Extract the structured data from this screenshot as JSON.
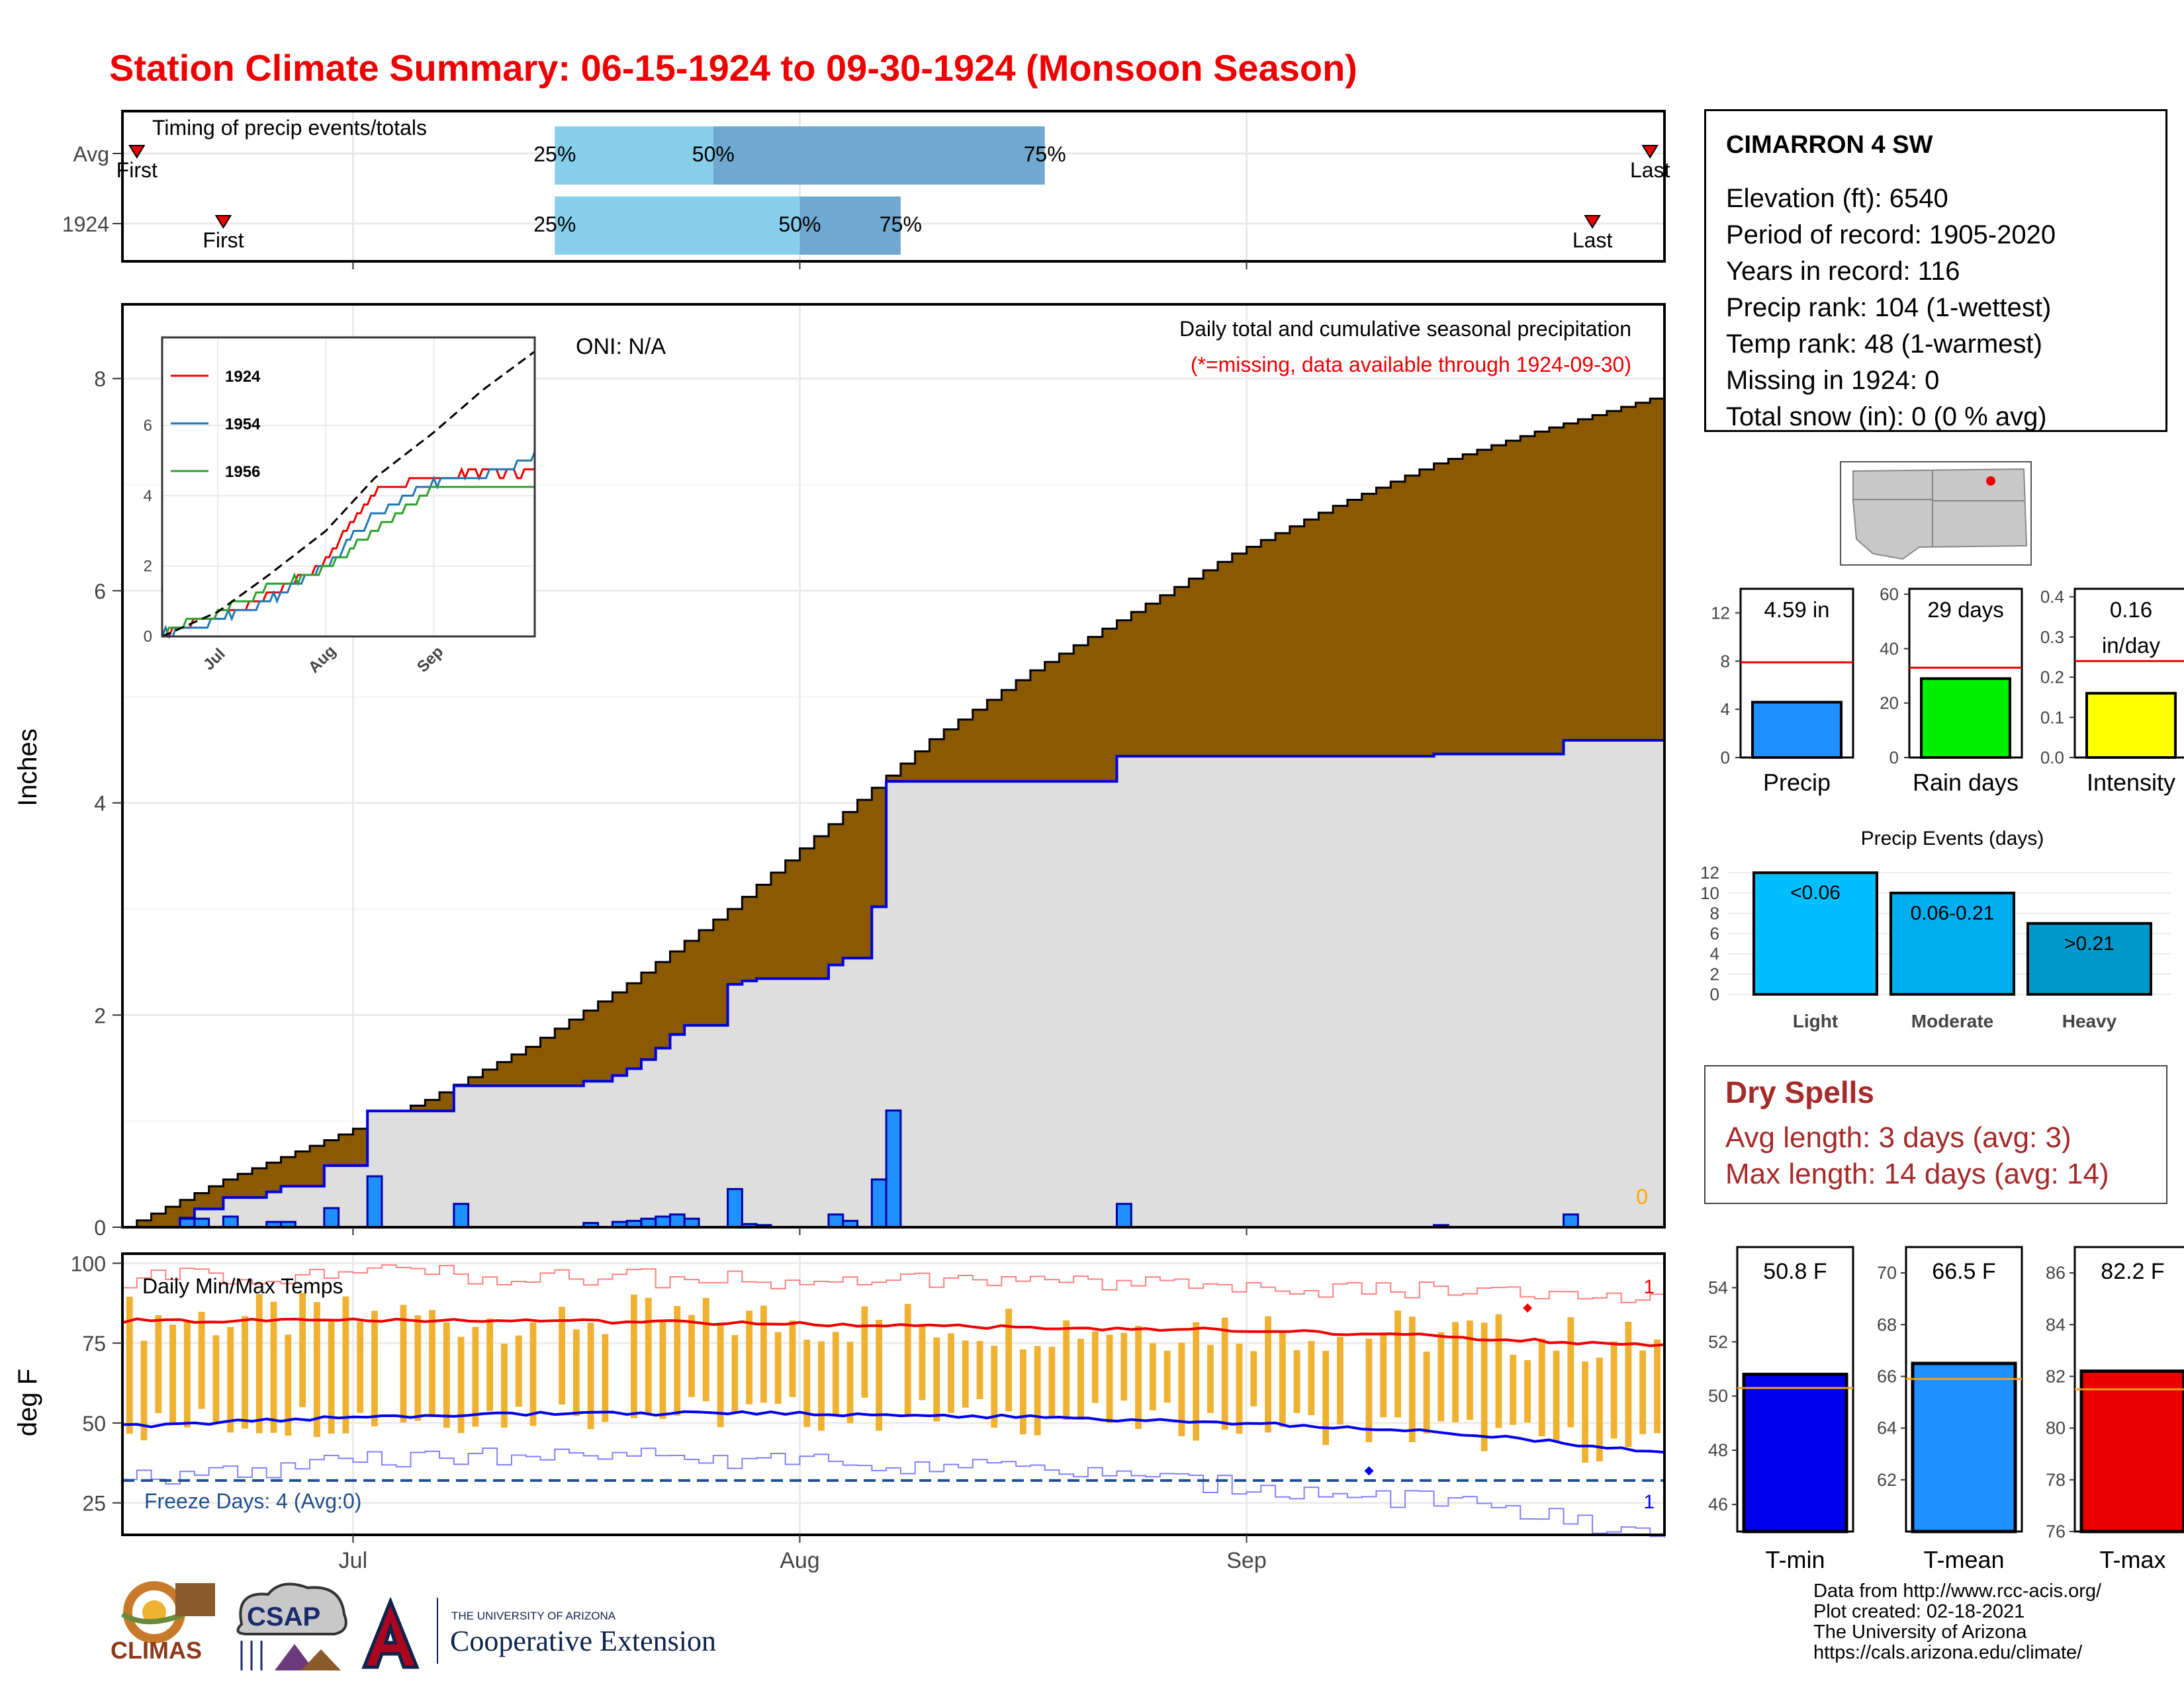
{
  "title": "Station Climate Summary: 06-15-1924 to 09-30-1924 (Monsoon Season)",
  "colors": {
    "title": "#ee0000",
    "cumulative_avg": "#8b5a00",
    "cumulative_year": "#dedede",
    "daily_bar": "#1e90ff",
    "temp_bar": "#f0b030",
    "tmax_line": "#ee0000",
    "tmin_line": "#0000ee",
    "q1_bar": "#87ceeb",
    "q2_bar": "#6fa8d0",
    "light": "#00bfff",
    "moderate": "#00aeef",
    "heavy": "#0099cc",
    "dry_text": "#a52a2a"
  },
  "timing_panel": {
    "title": "Timing of precip events/totals",
    "rows": [
      {
        "label": "Avg",
        "first_date": "1924-06-16",
        "q25_date": "1924-07-15",
        "q50_date": "1924-07-26",
        "q75_date": "1924-08-18",
        "last_date": "1924-09-29",
        "first_label": "First",
        "last_label": "Last",
        "p25": "25%",
        "p50": "50%",
        "p75": "75%"
      },
      {
        "label": "1924",
        "first_date": "1924-06-22",
        "q25_date": "1924-07-15",
        "q50_date": "1924-08-01",
        "q75_date": "1924-08-08",
        "last_date": "1924-09-25",
        "first_label": "First",
        "last_label": "Last",
        "p25": "25%",
        "p50": "50%",
        "p75": "75%"
      }
    ]
  },
  "precip_panel": {
    "ylabel": "Inches",
    "title": "Daily total and cumulative seasonal precipitation",
    "note": "(*=missing, data available through 1924-09-30)",
    "oni": "ONI: N/A",
    "corner_count": "0",
    "yticks": [
      "0",
      "2",
      "4",
      "6",
      "8"
    ]
  },
  "inset": {
    "yticks": [
      "0",
      "2",
      "4",
      "6"
    ],
    "xticks": [
      "Jul",
      "Aug",
      "Sep"
    ],
    "legend": [
      "1924",
      "1954",
      "1956"
    ]
  },
  "temp_panel": {
    "ylabel": "deg F",
    "title": "Daily Min/Max Temps",
    "freeze": "Freeze Days: 4 (Avg:0)",
    "count_top": "1",
    "count_bottom": "1",
    "yticks": [
      "25",
      "50",
      "75",
      "100"
    ]
  },
  "xaxis": {
    "ticks": [
      "Jul",
      "Aug",
      "Sep"
    ]
  },
  "station": {
    "name": "CIMARRON 4 SW",
    "lines": [
      "Elevation (ft): 6540",
      "Period of record: 1905-2020",
      "Years in record: 116",
      "Precip rank: 104 (1-wettest)",
      "Temp rank: 48 (1-warmest)",
      "Missing in 1924: 0",
      "Total snow (in): 0 (0 % avg)"
    ]
  },
  "mini_precip": {
    "label": "Precip",
    "value_text": "4.59 in",
    "value": 4.59,
    "avg": 7.9,
    "ylim": [
      0,
      14
    ],
    "yticks": [
      "0",
      "4",
      "8",
      "12"
    ]
  },
  "mini_raindays": {
    "label": "Rain days",
    "value_text": "29 days",
    "value": 29,
    "avg": 33,
    "ylim": [
      0,
      62
    ],
    "yticks": [
      "0",
      "20",
      "40",
      "60"
    ]
  },
  "mini_intensity": {
    "label": "Intensity",
    "value_text": "0.16",
    "value_text2": "in/day",
    "value": 0.16,
    "avg": 0.24,
    "ylim": [
      0,
      0.42
    ],
    "yticks": [
      "0.0",
      "0.1",
      "0.2",
      "0.3",
      "0.4"
    ]
  },
  "events": {
    "title": "Precip Events (days)",
    "yticks": [
      "0",
      "2",
      "4",
      "6",
      "8",
      "10",
      "12"
    ],
    "ylim": [
      0,
      12
    ],
    "bars": [
      {
        "name": "Light",
        "label": "<0.06",
        "value": 12
      },
      {
        "name": "Moderate",
        "label": "0.06-0.21",
        "value": 10
      },
      {
        "name": "Heavy",
        "label": ">0.21",
        "value": 7
      }
    ]
  },
  "dry_spells": {
    "title": "Dry Spells",
    "avg": "Avg length: 3 days (avg: 3)",
    "max": "Max length: 14 days (avg: 14)"
  },
  "tmin": {
    "label": "T-min",
    "value_text": "50.8 F",
    "value": 50.8,
    "avg": 50.3,
    "ylim": [
      45,
      55.5
    ],
    "yticks": [
      "46",
      "48",
      "50",
      "52",
      "54"
    ]
  },
  "tmean": {
    "label": "T-mean",
    "value_text": "66.5 F",
    "value": 66.5,
    "avg": 65.9,
    "ylim": [
      60,
      71
    ],
    "yticks": [
      "62",
      "64",
      "66",
      "68",
      "70"
    ]
  },
  "tmax": {
    "label": "T-max",
    "value_text": "82.2 F",
    "value": 82.2,
    "avg": 81.5,
    "ylim": [
      76,
      87
    ],
    "yticks": [
      "76",
      "78",
      "80",
      "82",
      "84",
      "86"
    ]
  },
  "credits": [
    "Data from http://www.rcc-acis.org/",
    "Plot created: 02-18-2021",
    "The University of Arizona",
    "https://cals.arizona.edu/climate/"
  ],
  "logos": {
    "climas": "CLIMAS",
    "csap": "CSAP",
    "ua_small": "THE UNIVERSITY OF ARIZONA",
    "coop": "Cooperative Extension"
  },
  "chart_data": [
    {
      "type": "area",
      "title": "Daily total and cumulative seasonal precipitation",
      "ylabel": "Inches",
      "ylim": [
        0,
        8.7
      ],
      "x": [
        "1924-06-15",
        "1924-06-22",
        "1924-06-29",
        "1924-07-06",
        "1924-07-13",
        "1924-07-20",
        "1924-07-27",
        "1924-08-03",
        "1924-08-10",
        "1924-08-17",
        "1924-08-24",
        "1924-08-31",
        "1924-09-07",
        "1924-09-14",
        "1924-09-21",
        "1924-09-30"
      ],
      "series": [
        {
          "name": "Avg cumulative",
          "values": [
            0.0,
            0.45,
            0.82,
            1.2,
            1.7,
            2.3,
            3.0,
            3.8,
            4.6,
            5.25,
            5.8,
            6.35,
            6.8,
            7.2,
            7.5,
            7.85
          ]
        },
        {
          "name": "1924 cumulative",
          "values": [
            0.0,
            0.0,
            0.12,
            0.35,
            1.05,
            1.32,
            1.45,
            2.4,
            2.6,
            4.15,
            4.18,
            4.43,
            4.45,
            4.5,
            4.59,
            4.59
          ]
        }
      ],
      "daily_precip": [
        {
          "date": "1924-06-19",
          "value": 0.08
        },
        {
          "date": "1924-06-20",
          "value": 0.08
        },
        {
          "date": "1924-06-22",
          "value": 0.1
        },
        {
          "date": "1924-06-25",
          "value": 0.05
        },
        {
          "date": "1924-06-26",
          "value": 0.05
        },
        {
          "date": "1924-06-29",
          "value": 0.18
        },
        {
          "date": "1924-07-02",
          "value": 0.48
        },
        {
          "date": "1924-07-08",
          "value": 0.22
        },
        {
          "date": "1924-07-17",
          "value": 0.04
        },
        {
          "date": "1924-07-19",
          "value": 0.05
        },
        {
          "date": "1924-07-20",
          "value": 0.06
        },
        {
          "date": "1924-07-21",
          "value": 0.08
        },
        {
          "date": "1924-07-22",
          "value": 0.1
        },
        {
          "date": "1924-07-23",
          "value": 0.12
        },
        {
          "date": "1924-07-24",
          "value": 0.08
        },
        {
          "date": "1924-07-27",
          "value": 0.36
        },
        {
          "date": "1924-07-28",
          "value": 0.03
        },
        {
          "date": "1924-07-29",
          "value": 0.02
        },
        {
          "date": "1924-08-03",
          "value": 0.12
        },
        {
          "date": "1924-08-04",
          "value": 0.06
        },
        {
          "date": "1924-08-06",
          "value": 0.45
        },
        {
          "date": "1924-08-07",
          "value": 1.1
        },
        {
          "date": "1924-08-23",
          "value": 0.22
        },
        {
          "date": "1924-09-14",
          "value": 0.02
        },
        {
          "date": "1924-09-23",
          "value": 0.12
        }
      ]
    },
    {
      "type": "line",
      "title": "",
      "xlabel": "",
      "ylabel": "",
      "ylim": [
        0,
        8.5
      ],
      "x": [
        "1924-06-15",
        "1924-07-01",
        "1924-07-15",
        "1924-08-01",
        "1924-08-15",
        "1924-09-01",
        "1924-09-15",
        "1924-09-30"
      ],
      "series": [
        {
          "name": "1924",
          "values": [
            0.0,
            0.55,
            1.0,
            2.1,
            4.1,
            4.5,
            4.6,
            4.6
          ]
        },
        {
          "name": "1954",
          "values": [
            0.0,
            0.4,
            0.9,
            1.9,
            3.4,
            4.3,
            4.5,
            5.0
          ]
        },
        {
          "name": "1956",
          "values": [
            0.0,
            0.6,
            1.3,
            1.8,
            2.9,
            4.2,
            4.2,
            4.2
          ]
        },
        {
          "name": "",
          "values": [
            0.0,
            0.7,
            1.7,
            3.0,
            4.5,
            5.8,
            7.0,
            8.1
          ]
        }
      ]
    },
    {
      "type": "line",
      "title": "Daily Min/Max Temps",
      "ylabel": "deg F",
      "ylim": [
        15,
        103
      ],
      "x": [
        "1924-06-15",
        "1924-07-01",
        "1924-07-15",
        "1924-08-01",
        "1924-08-15",
        "1924-09-01",
        "1924-09-15",
        "1924-09-30"
      ],
      "series": [
        {
          "name": "Avg Tmax",
          "values": [
            82,
            82,
            82,
            81,
            80,
            79,
            77,
            74
          ]
        },
        {
          "name": "Avg Tmin",
          "values": [
            49,
            52,
            53,
            53,
            52,
            50,
            47,
            41
          ]
        },
        {
          "name": "Record high",
          "values": [
            95,
            97,
            96,
            94,
            94,
            92,
            91,
            88
          ]
        },
        {
          "name": "Record low",
          "values": [
            32,
            38,
            40,
            38,
            36,
            30,
            25,
            15
          ]
        }
      ]
    },
    {
      "type": "bar",
      "title": "Precip Events (days)",
      "categories": [
        "Light",
        "Moderate",
        "Heavy"
      ],
      "values": [
        12,
        10,
        7
      ],
      "ylim": [
        0,
        12
      ]
    }
  ]
}
